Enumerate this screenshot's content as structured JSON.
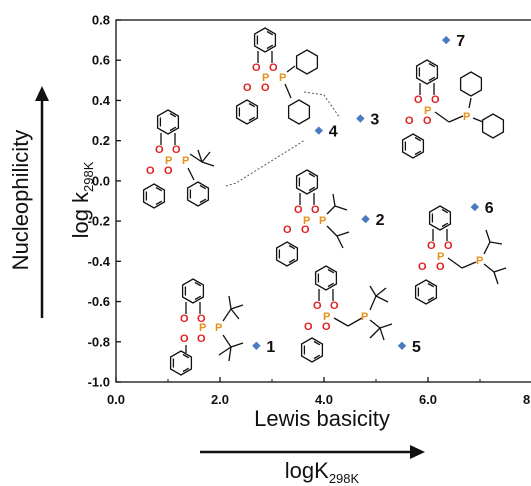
{
  "chart_data": {
    "type": "scatter",
    "x_tick_labels": [
      "0.0",
      "2.0",
      "4.0",
      "6.0",
      "8.0"
    ],
    "y_tick_labels": [
      "-1.0",
      "-0.8",
      "-0.6",
      "-0.4",
      "-0.2",
      "0.0",
      "0.2",
      "0.4",
      "0.6",
      "0.8"
    ],
    "xlim": [
      0,
      8
    ],
    "ylim": [
      -1.0,
      0.8
    ],
    "x_label_main": "Lewis basicity",
    "x_label_base": "logK",
    "x_label_sub": "298K",
    "y_label_main": "Nucleophilicity",
    "y_label_base": "log k",
    "y_label_sub": "298K",
    "marker_color": "#4a7bbf",
    "points": [
      {
        "label": "1",
        "x": 2.7,
        "y": -0.82
      },
      {
        "label": "2",
        "x": 4.8,
        "y": -0.19
      },
      {
        "label": "3",
        "x": 4.7,
        "y": 0.31
      },
      {
        "label": "4",
        "x": 3.9,
        "y": 0.25
      },
      {
        "label": "5",
        "x": 5.5,
        "y": -0.82
      },
      {
        "label": "6",
        "x": 6.9,
        "y": -0.13
      },
      {
        "label": "7",
        "x": 6.35,
        "y": 0.7
      }
    ],
    "atom_labels": {
      "P": "P",
      "O": "O"
    }
  }
}
